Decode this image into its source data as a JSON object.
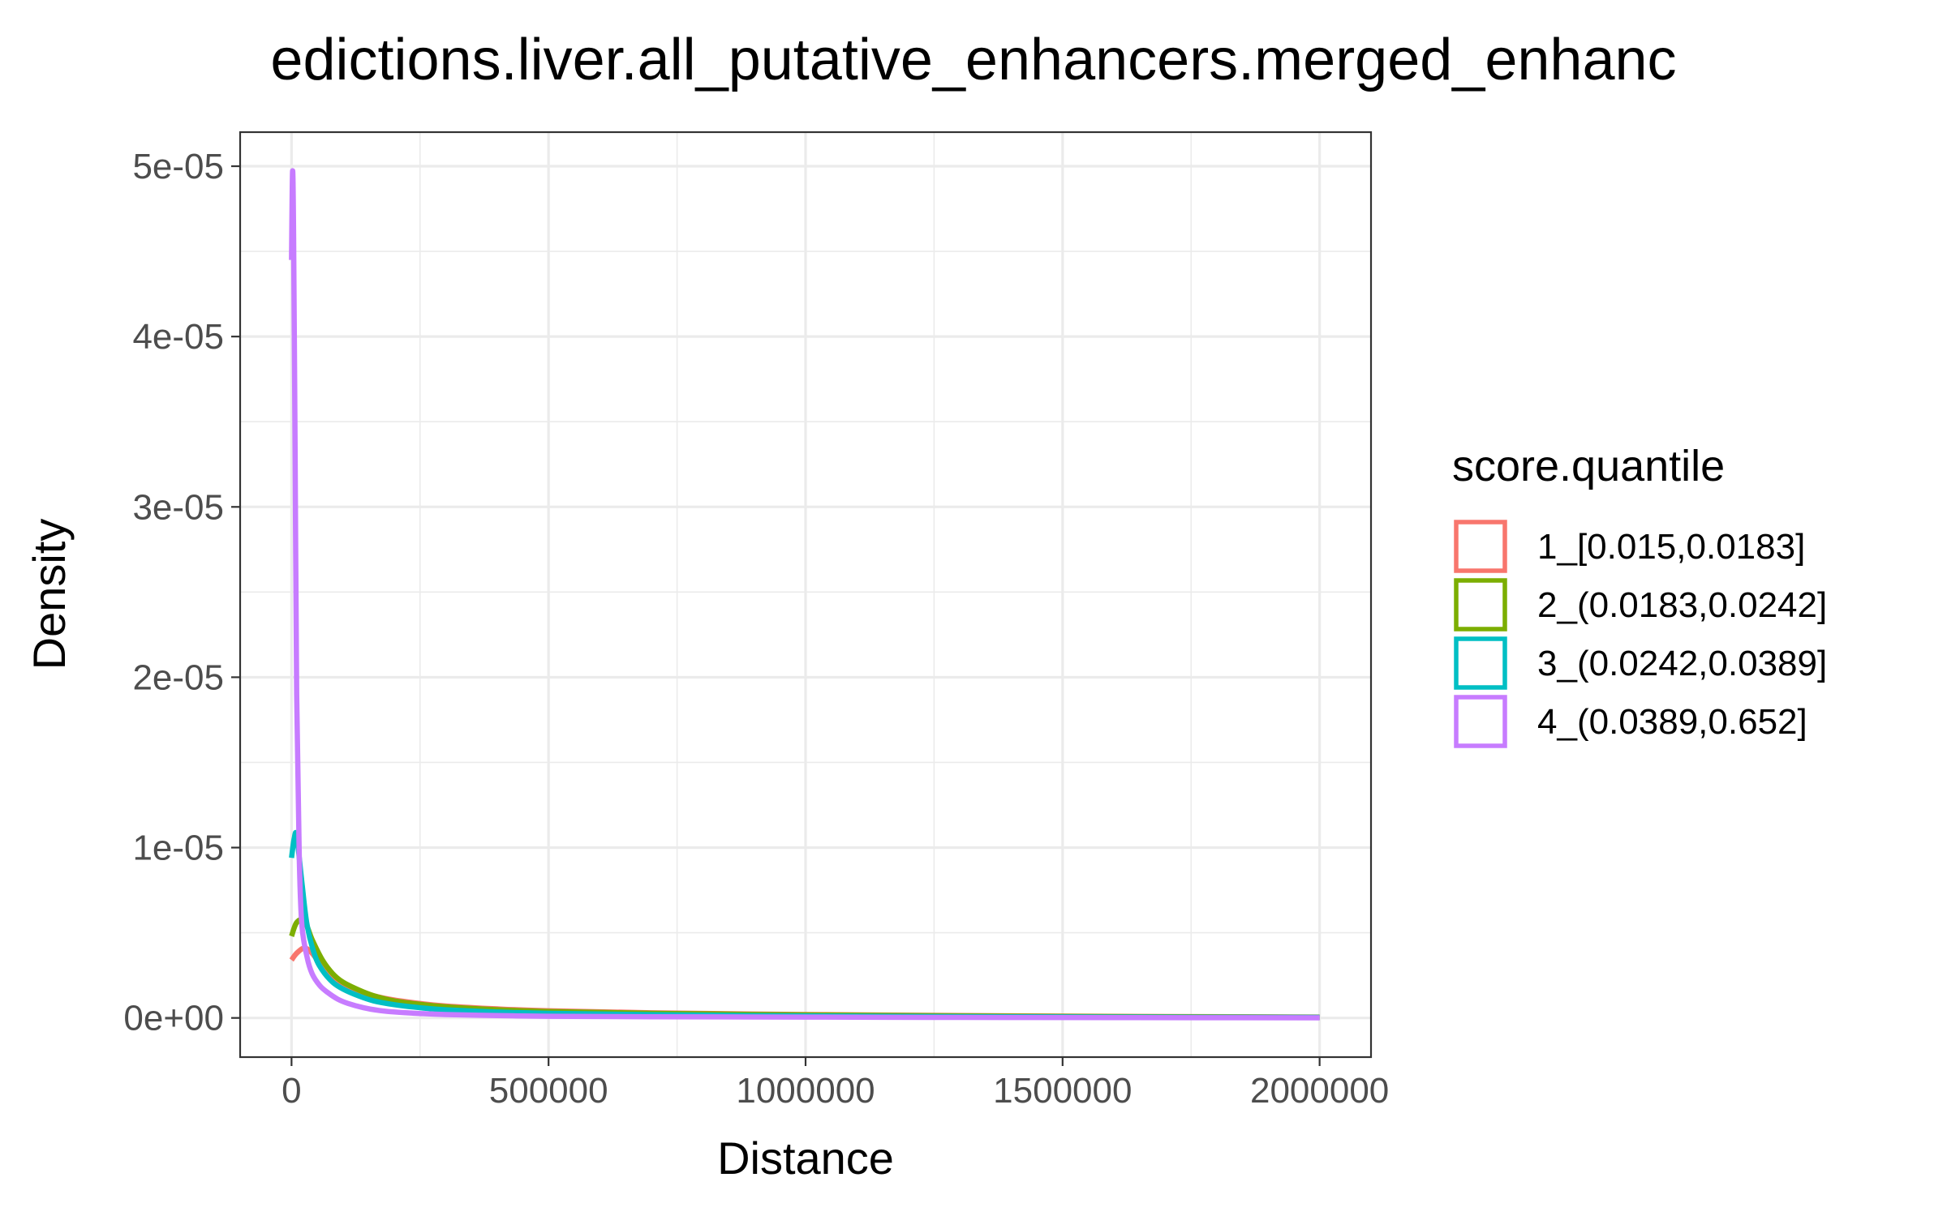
{
  "chart_data": {
    "type": "line",
    "title": "edictions.liver.all_putative_enhancers.merged_enhanc",
    "xlabel": "Distance",
    "ylabel": "Density",
    "xlim": [
      -100000,
      2100000
    ],
    "ylim": [
      -2.3e-06,
      5.2e-05
    ],
    "x_ticks": [
      0,
      500000,
      1000000,
      1500000,
      2000000
    ],
    "x_tick_labels": [
      "0",
      "500000",
      "1000000",
      "1500000",
      "2000000"
    ],
    "y_ticks": [
      0,
      1e-05,
      2e-05,
      3e-05,
      4e-05,
      5e-05
    ],
    "y_tick_labels": [
      "0e+00",
      "1e-05",
      "2e-05",
      "3e-05",
      "4e-05",
      "5e-05"
    ],
    "grid": true,
    "legend": {
      "title": "score.quantile",
      "position": "right"
    },
    "series": [
      {
        "name": "1_[0.015,0.0183]",
        "color": "#F8766D",
        "x": [
          0,
          10000,
          25000,
          40000,
          60000,
          80000,
          100000,
          130000,
          160000,
          200000,
          250000,
          300000,
          400000,
          500000,
          700000,
          1000000,
          1300000,
          1600000,
          2000000
        ],
        "y": [
          3.4e-06,
          3.8e-06,
          4.1e-06,
          3.8e-06,
          3e-06,
          2.4e-06,
          2e-06,
          1.6e-06,
          1.3e-06,
          1.05e-06,
          8.5e-07,
          7e-07,
          5.3e-07,
          4.2e-07,
          3e-07,
          2e-07,
          1.4e-07,
          9e-08,
          5e-08
        ]
      },
      {
        "name": "2_(0.0183,0.0242]",
        "color": "#7CAE00",
        "x": [
          0,
          10000,
          25000,
          40000,
          60000,
          80000,
          100000,
          130000,
          160000,
          200000,
          250000,
          300000,
          400000,
          500000,
          700000,
          1000000,
          1300000,
          1600000,
          2000000
        ],
        "y": [
          4.8e-06,
          5.6e-06,
          5.7e-06,
          4.6e-06,
          3.4e-06,
          2.6e-06,
          2.1e-06,
          1.65e-06,
          1.3e-06,
          1e-06,
          8e-07,
          6.5e-07,
          4.8e-07,
          3.8e-07,
          2.7e-07,
          1.8e-07,
          1.2e-07,
          8e-08,
          4e-08
        ]
      },
      {
        "name": "3_(0.0242,0.0389]",
        "color": "#00BFC4",
        "x": [
          0,
          5000,
          10000,
          20000,
          30000,
          45000,
          60000,
          80000,
          100000,
          130000,
          160000,
          200000,
          250000,
          300000,
          400000,
          500000,
          700000,
          1000000,
          1300000,
          1600000,
          2000000
        ],
        "y": [
          9.4e-06,
          1.05e-05,
          1.07e-05,
          8e-06,
          5.5e-06,
          3.7e-06,
          2.8e-06,
          2.1e-06,
          1.7e-06,
          1.3e-06,
          1e-06,
          7.8e-07,
          6e-07,
          4.8e-07,
          3.5e-07,
          2.7e-07,
          1.9e-07,
          1.2e-07,
          8e-08,
          5e-08,
          3e-08
        ]
      },
      {
        "name": "4_(0.0389,0.652]",
        "color": "#C77CFF",
        "x": [
          0,
          2000,
          4000,
          7000,
          10000,
          15000,
          20000,
          30000,
          40000,
          55000,
          70000,
          90000,
          110000,
          140000,
          170000,
          200000,
          250000,
          300000,
          400000,
          500000,
          700000,
          1000000,
          1300000,
          1600000,
          2000000
        ],
        "y": [
          4.45e-05,
          4.97e-05,
          4.6e-05,
          3.3e-05,
          1.9e-05,
          9.5e-06,
          5.5e-06,
          3.6e-06,
          2.6e-06,
          1.9e-06,
          1.5e-06,
          1.1e-06,
          8.5e-07,
          6e-07,
          4.4e-07,
          3.5e-07,
          2.6e-07,
          2e-07,
          1.4e-07,
          1e-07,
          7e-08,
          5e-08,
          3e-08,
          2e-08,
          1e-08
        ]
      }
    ]
  }
}
